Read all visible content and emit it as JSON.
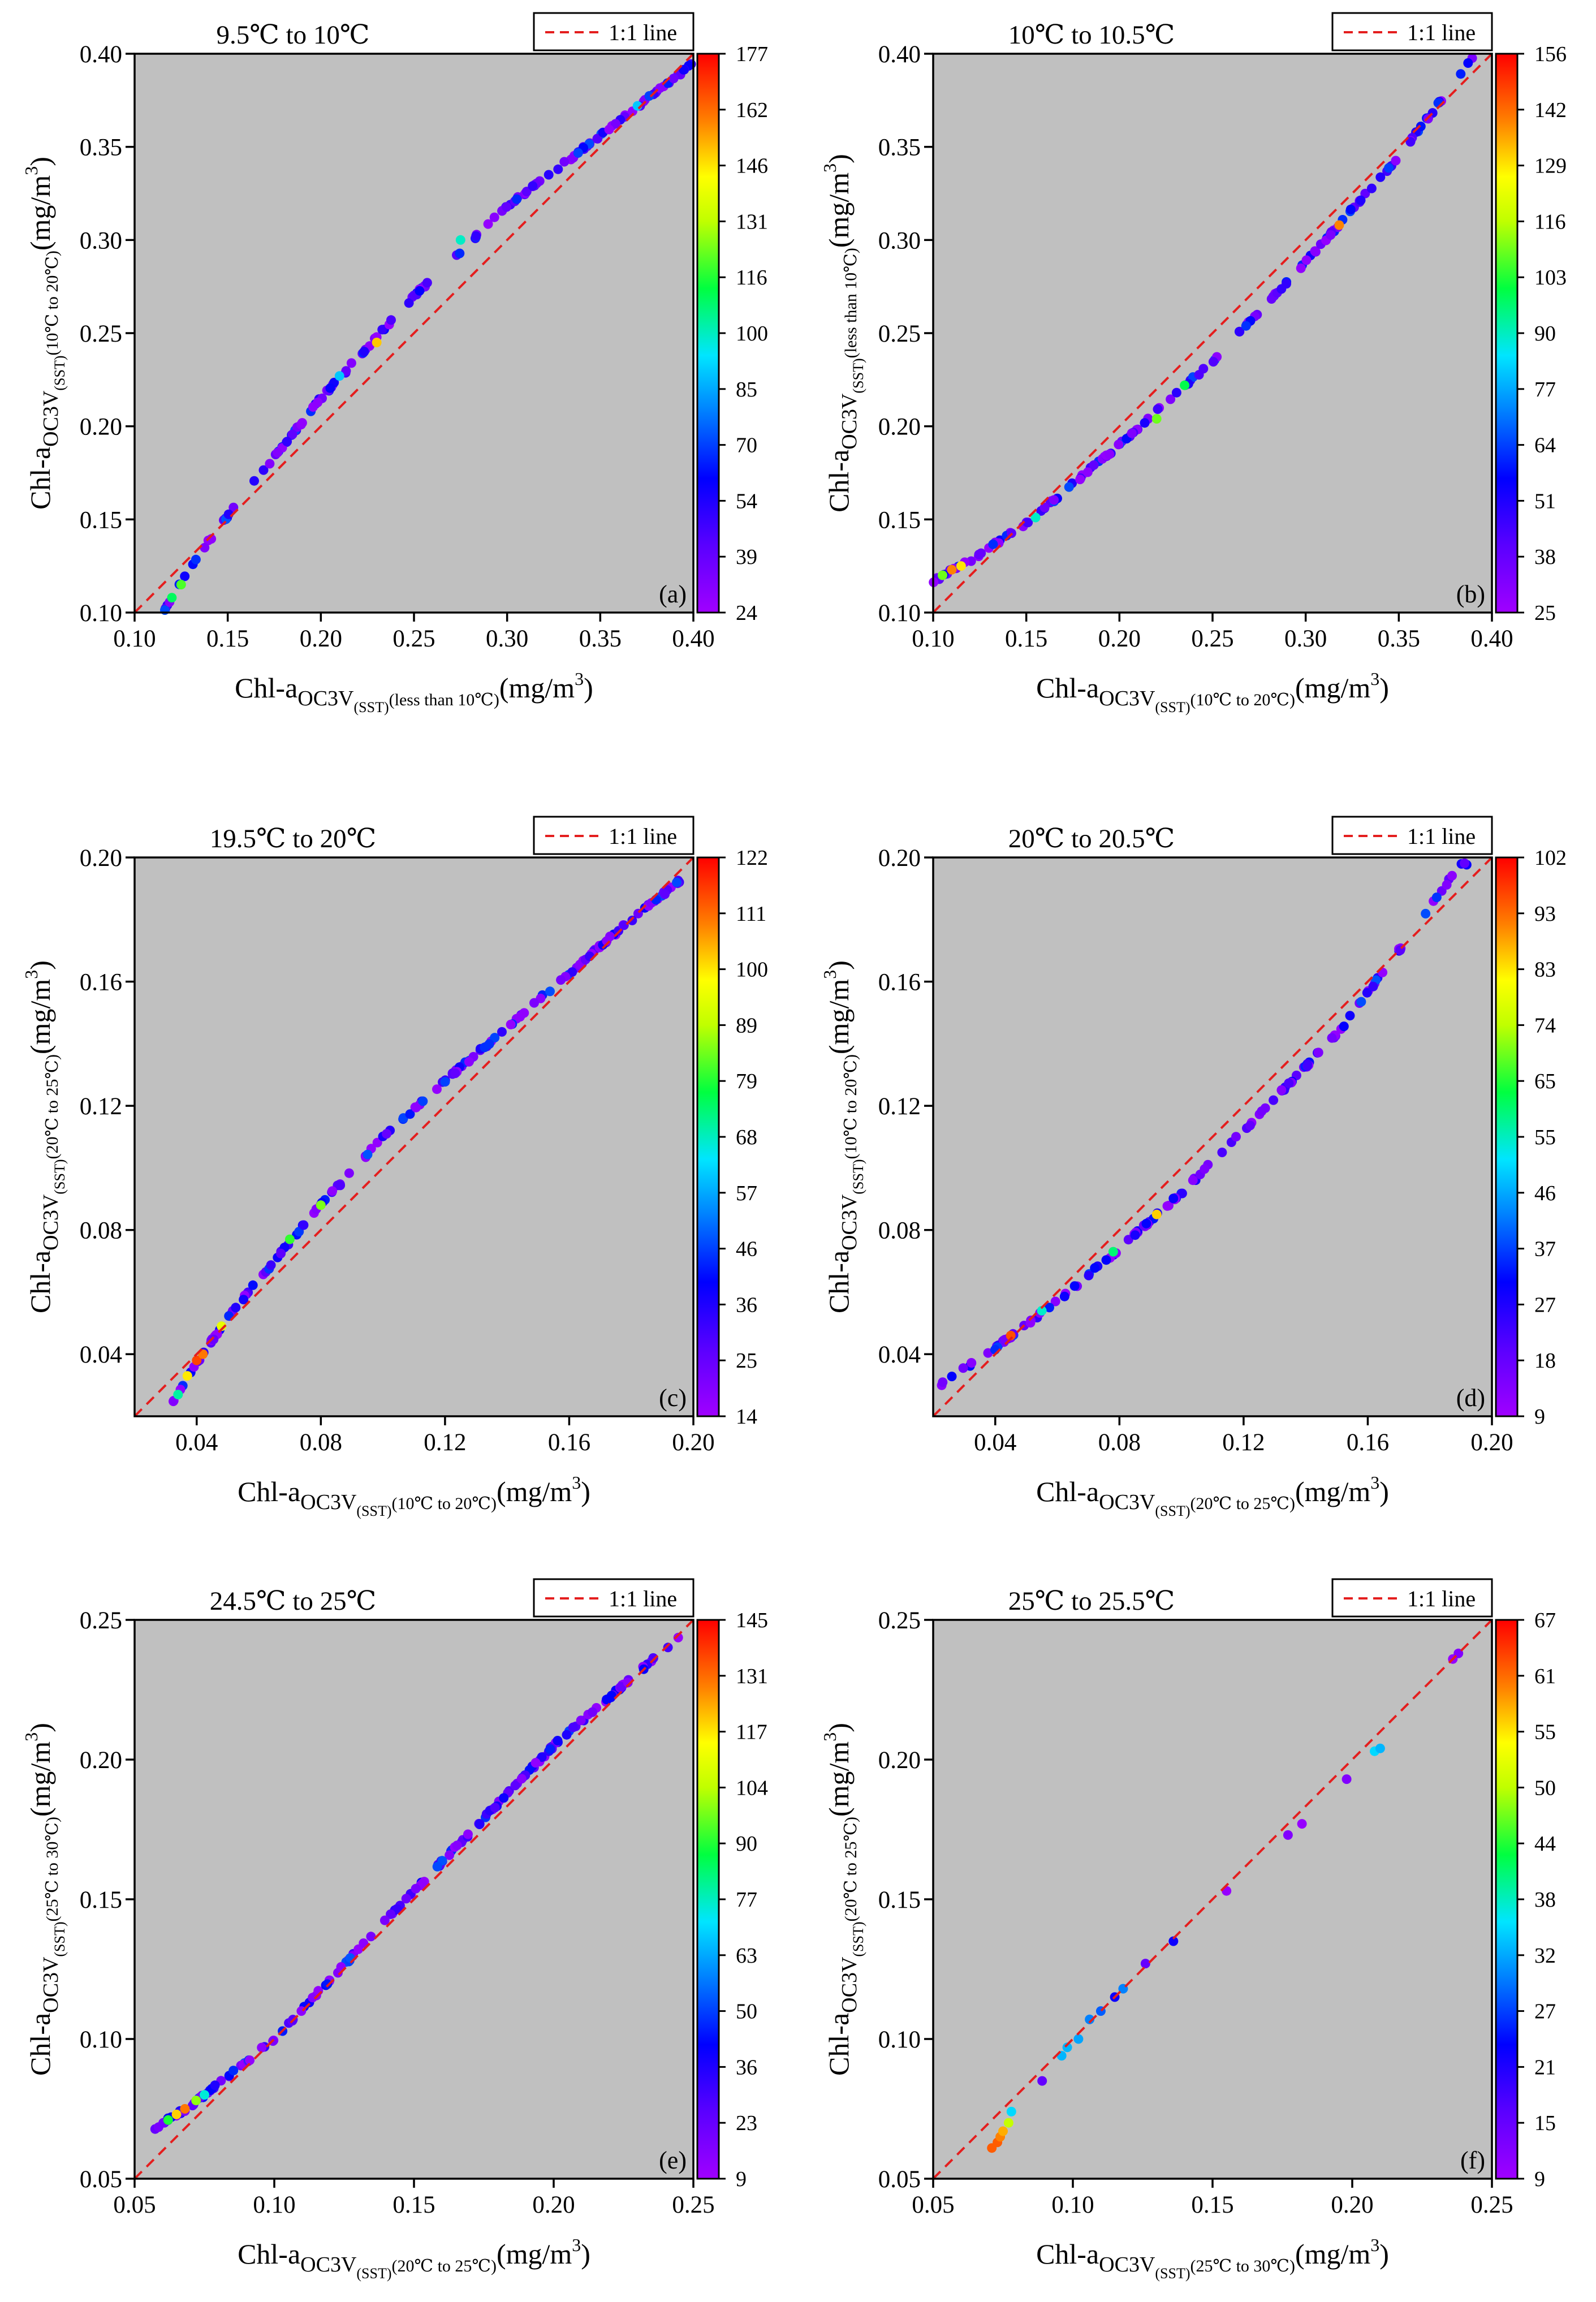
{
  "chart_data": [
    {
      "id": "a",
      "type": "scatter",
      "title": "9.5℃ to 10℃",
      "panel_label": "(a)",
      "legend": "1:1 line",
      "xlabel": {
        "main": "Chl-a",
        "sub": "OC3V",
        "sub2": "(SST)",
        "sub3": "(less than 10℃)",
        "unit": "(mg/m",
        "sup": "3",
        "end": ")"
      },
      "ylabel": {
        "main": "Chl-a",
        "sub": "OC3V",
        "sub2": "(SST)",
        "sub3": "(10℃ to 20℃)",
        "unit": "(mg/m",
        "sup": "3",
        "end": ")"
      },
      "xlim": [
        0.1,
        0.4
      ],
      "ylim": [
        0.1,
        0.4
      ],
      "xticks": [
        "0.10",
        "0.15",
        "0.20",
        "0.25",
        "0.30",
        "0.35",
        "0.40"
      ],
      "yticks": [
        "0.10",
        "0.15",
        "0.20",
        "0.25",
        "0.30",
        "0.35",
        "0.40"
      ],
      "colorbar_ticks": [
        "177",
        "162",
        "146",
        "131",
        "116",
        "100",
        "85",
        "70",
        "54",
        "39",
        "24"
      ],
      "color_range": [
        24,
        177
      ],
      "curve": [
        [
          0.115,
          0.1
        ],
        [
          0.13,
          0.125
        ],
        [
          0.15,
          0.152
        ],
        [
          0.18,
          0.19
        ],
        [
          0.2,
          0.215
        ],
        [
          0.25,
          0.27
        ],
        [
          0.3,
          0.318
        ],
        [
          0.35,
          0.356
        ],
        [
          0.4,
          0.395
        ]
      ],
      "n_points": 150,
      "x_range": [
        0.115,
        0.4
      ],
      "hot": [
        [
          0.12,
          0.108,
          110
        ],
        [
          0.125,
          0.115,
          120
        ],
        [
          0.23,
          0.245,
          150
        ],
        [
          0.275,
          0.3,
          100
        ],
        [
          0.21,
          0.227,
          90
        ],
        [
          0.37,
          0.372,
          90
        ]
      ]
    },
    {
      "id": "b",
      "type": "scatter",
      "title": "10℃ to 10.5℃",
      "panel_label": "(b)",
      "legend": "1:1 line",
      "xlabel": {
        "main": "Chl-a",
        "sub": "OC3V",
        "sub2": "(SST)",
        "sub3": "(10℃ to 20℃)",
        "unit": "(mg/m",
        "sup": "3",
        "end": ")"
      },
      "ylabel": {
        "main": "Chl-a",
        "sub": "OC3V",
        "sub2": "(SST)",
        "sub3": "(less than 10℃)",
        "unit": "(mg/m",
        "sup": "3",
        "end": ")"
      },
      "xlim": [
        0.1,
        0.4
      ],
      "ylim": [
        0.1,
        0.4
      ],
      "xticks": [
        "0.10",
        "0.15",
        "0.20",
        "0.25",
        "0.30",
        "0.35",
        "0.40"
      ],
      "yticks": [
        "0.10",
        "0.15",
        "0.20",
        "0.25",
        "0.30",
        "0.35",
        "0.40"
      ],
      "colorbar_ticks": [
        "156",
        "142",
        "129",
        "116",
        "103",
        "90",
        "77",
        "64",
        "51",
        "38",
        "25"
      ],
      "color_range": [
        25,
        156
      ],
      "curve": [
        [
          0.1,
          0.117
        ],
        [
          0.12,
          0.128
        ],
        [
          0.15,
          0.148
        ],
        [
          0.2,
          0.19
        ],
        [
          0.25,
          0.235
        ],
        [
          0.3,
          0.288
        ],
        [
          0.35,
          0.345
        ],
        [
          0.39,
          0.398
        ]
      ],
      "n_points": 140,
      "x_range": [
        0.1,
        0.39
      ],
      "hot": [
        [
          0.105,
          0.12,
          110
        ],
        [
          0.11,
          0.123,
          140
        ],
        [
          0.115,
          0.125,
          130
        ],
        [
          0.22,
          0.204,
          110
        ],
        [
          0.235,
          0.222,
          100
        ],
        [
          0.318,
          0.308,
          140
        ],
        [
          0.155,
          0.151,
          90
        ]
      ]
    },
    {
      "id": "c",
      "type": "scatter",
      "title": "19.5℃ to 20℃",
      "panel_label": "(c)",
      "legend": "1:1 line",
      "xlabel": {
        "main": "Chl-a",
        "sub": "OC3V",
        "sub2": "(SST)",
        "sub3": "(10℃ to 20℃)",
        "unit": "(mg/m",
        "sup": "3",
        "end": ")"
      },
      "ylabel": {
        "main": "Chl-a",
        "sub": "OC3V",
        "sub2": "(SST)",
        "sub3": "(20℃ to 25℃)",
        "unit": "(mg/m",
        "sup": "3",
        "end": ")"
      },
      "xlim": [
        0.02,
        0.2
      ],
      "ylim": [
        0.02,
        0.2
      ],
      "xticks": [
        "0.04",
        "0.08",
        "0.12",
        "0.16",
        "0.20"
      ],
      "yticks": [
        "0.04",
        "0.08",
        "0.12",
        "0.16",
        "0.20"
      ],
      "colorbar_ticks": [
        "122",
        "111",
        "100",
        "89",
        "79",
        "68",
        "57",
        "46",
        "36",
        "25",
        "14"
      ],
      "color_range": [
        14,
        122
      ],
      "curve": [
        [
          0.032,
          0.024
        ],
        [
          0.04,
          0.037
        ],
        [
          0.05,
          0.052
        ],
        [
          0.08,
          0.088
        ],
        [
          0.1,
          0.11
        ],
        [
          0.12,
          0.128
        ],
        [
          0.15,
          0.154
        ],
        [
          0.18,
          0.18
        ],
        [
          0.2,
          0.196
        ]
      ],
      "n_points": 150,
      "x_range": [
        0.032,
        0.2
      ],
      "hot": [
        [
          0.04,
          0.038,
          115
        ],
        [
          0.042,
          0.04,
          110
        ],
        [
          0.037,
          0.033,
          100
        ],
        [
          0.048,
          0.049,
          95
        ],
        [
          0.08,
          0.088,
          85
        ],
        [
          0.07,
          0.077,
          80
        ],
        [
          0.034,
          0.027,
          70
        ]
      ]
    },
    {
      "id": "d",
      "type": "scatter",
      "title": "20℃ to 20.5℃",
      "panel_label": "(d)",
      "legend": "1:1 line",
      "xlabel": {
        "main": "Chl-a",
        "sub": "OC3V",
        "sub2": "(SST)",
        "sub3": "(20℃ to 25℃)",
        "unit": "(mg/m",
        "sup": "3",
        "end": ")"
      },
      "ylabel": {
        "main": "Chl-a",
        "sub": "OC3V",
        "sub2": "(SST)",
        "sub3": "(10℃ to 20℃)",
        "unit": "(mg/m",
        "sup": "3",
        "end": ")"
      },
      "xlim": [
        0.02,
        0.2
      ],
      "ylim": [
        0.02,
        0.2
      ],
      "xticks": [
        "0.04",
        "0.08",
        "0.12",
        "0.16",
        "0.20"
      ],
      "yticks": [
        "0.04",
        "0.08",
        "0.12",
        "0.16",
        "0.20"
      ],
      "colorbar_ticks": [
        "102",
        "93",
        "83",
        "74",
        "65",
        "55",
        "46",
        "37",
        "27",
        "18",
        "9"
      ],
      "color_range": [
        9,
        102
      ],
      "curve": [
        [
          0.022,
          0.03
        ],
        [
          0.04,
          0.042
        ],
        [
          0.06,
          0.057
        ],
        [
          0.08,
          0.074
        ],
        [
          0.1,
          0.092
        ],
        [
          0.12,
          0.112
        ],
        [
          0.15,
          0.143
        ],
        [
          0.17,
          0.17
        ],
        [
          0.19,
          0.198
        ]
      ],
      "n_points": 130,
      "x_range": [
        0.022,
        0.192
      ],
      "hot": [
        [
          0.045,
          0.046,
          95
        ],
        [
          0.092,
          0.085,
          85
        ],
        [
          0.078,
          0.073,
          60
        ],
        [
          0.055,
          0.054,
          55
        ]
      ]
    },
    {
      "id": "e",
      "type": "scatter",
      "title": "24.5℃ to 25℃",
      "panel_label": "(e)",
      "legend": "1:1 line",
      "xlabel": {
        "main": "Chl-a",
        "sub": "OC3V",
        "sub2": "(SST)",
        "sub3": "(20℃ to 25℃)",
        "unit": "(mg/m",
        "sup": "3",
        "end": ")"
      },
      "ylabel": {
        "main": "Chl-a",
        "sub": "OC3V",
        "sub2": "(SST)",
        "sub3": "(25℃ to 30℃)",
        "unit": "(mg/m",
        "sup": "3",
        "end": ")"
      },
      "xlim": [
        0.05,
        0.25
      ],
      "ylim": [
        0.05,
        0.25
      ],
      "xticks": [
        "0.05",
        "0.10",
        "0.15",
        "0.20",
        "0.25"
      ],
      "yticks": [
        "0.05",
        "0.10",
        "0.15",
        "0.20",
        "0.25"
      ],
      "colorbar_ticks": [
        "145",
        "131",
        "117",
        "104",
        "90",
        "77",
        "63",
        "50",
        "36",
        "23",
        "9"
      ],
      "color_range": [
        9,
        145
      ],
      "curve": [
        [
          0.057,
          0.068
        ],
        [
          0.07,
          0.076
        ],
        [
          0.1,
          0.1
        ],
        [
          0.15,
          0.153
        ],
        [
          0.2,
          0.205
        ],
        [
          0.245,
          0.244
        ]
      ],
      "n_points": 170,
      "x_range": [
        0.057,
        0.245
      ],
      "hot": [
        [
          0.068,
          0.075,
          130
        ],
        [
          0.065,
          0.073,
          120
        ],
        [
          0.062,
          0.071,
          90
        ],
        [
          0.072,
          0.078,
          100
        ],
        [
          0.075,
          0.08,
          75
        ]
      ]
    },
    {
      "id": "f",
      "type": "scatter",
      "title": "25℃ to 25.5℃",
      "panel_label": "(f)",
      "legend": "1:1 line",
      "xlabel": {
        "main": "Chl-a",
        "sub": "OC3V",
        "sub2": "(SST)",
        "sub3": "(25℃ to 30℃)",
        "unit": "(mg/m",
        "sup": "3",
        "end": ")"
      },
      "ylabel": {
        "main": "Chl-a",
        "sub": "OC3V",
        "sub2": "(SST)",
        "sub3": "(20℃ to 25℃)",
        "unit": "(mg/m",
        "sup": "3",
        "end": ")"
      },
      "xlim": [
        0.05,
        0.25
      ],
      "ylim": [
        0.05,
        0.25
      ],
      "xticks": [
        "0.05",
        "0.10",
        "0.15",
        "0.20",
        "0.25"
      ],
      "yticks": [
        "0.05",
        "0.10",
        "0.15",
        "0.20",
        "0.25"
      ],
      "colorbar_ticks": [
        "67",
        "61",
        "55",
        "50",
        "44",
        "38",
        "32",
        "27",
        "21",
        "15",
        "9"
      ],
      "color_range": [
        9,
        67
      ],
      "points": [
        [
          0.071,
          0.061,
          62
        ],
        [
          0.073,
          0.063,
          62
        ],
        [
          0.074,
          0.065,
          60
        ],
        [
          0.075,
          0.067,
          58
        ],
        [
          0.077,
          0.07,
          50
        ],
        [
          0.078,
          0.074,
          35
        ],
        [
          0.089,
          0.085,
          15
        ],
        [
          0.096,
          0.094,
          33
        ],
        [
          0.098,
          0.097,
          33
        ],
        [
          0.102,
          0.1,
          32
        ],
        [
          0.106,
          0.107,
          30
        ],
        [
          0.11,
          0.11,
          28
        ],
        [
          0.115,
          0.115,
          22
        ],
        [
          0.118,
          0.118,
          30
        ],
        [
          0.126,
          0.127,
          15
        ],
        [
          0.136,
          0.135,
          22
        ],
        [
          0.155,
          0.153,
          10
        ],
        [
          0.177,
          0.173,
          12
        ],
        [
          0.182,
          0.177,
          10
        ],
        [
          0.198,
          0.193,
          12
        ],
        [
          0.208,
          0.203,
          35
        ],
        [
          0.21,
          0.204,
          33
        ],
        [
          0.236,
          0.236,
          10
        ],
        [
          0.238,
          0.238,
          12
        ]
      ]
    }
  ]
}
